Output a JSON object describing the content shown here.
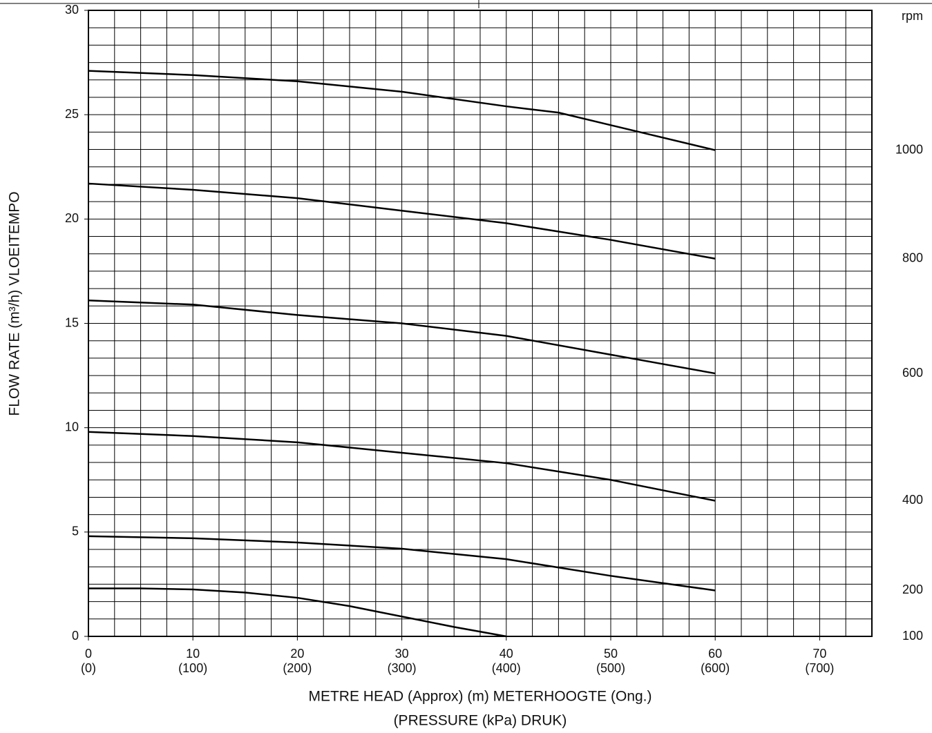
{
  "chart_data": {
    "type": "line",
    "xlabel": "METRE HEAD (Approx) (m) METERHOOGTE (Ong.)",
    "xlabel2": "(PRESSURE (kPa) DRUK)",
    "ylabel": "FLOW RATE (m³/h) VLOEITEMPO",
    "right_label": "rpm",
    "xlim": [
      0,
      75
    ],
    "ylim": [
      0,
      30
    ],
    "xticks": [
      0,
      10,
      20,
      30,
      40,
      50,
      60,
      70
    ],
    "x2tick_labels": [
      "(0)",
      "(100)",
      "(200)",
      "(300)",
      "(400)",
      "(500)",
      "(600)",
      "(700)"
    ],
    "yticks": [
      0,
      5,
      10,
      15,
      20,
      25,
      30
    ],
    "grid": true,
    "grid_divisions": {
      "x": 30,
      "y": 36
    },
    "series": [
      {
        "name": "1000",
        "color": "#000000",
        "x": [
          0,
          10,
          20,
          30,
          40,
          45,
          50,
          60
        ],
        "values": [
          27.1,
          26.9,
          26.6,
          26.1,
          25.4,
          25.1,
          24.5,
          23.3
        ]
      },
      {
        "name": "800",
        "color": "#000000",
        "x": [
          0,
          10,
          20,
          30,
          40,
          50,
          60
        ],
        "values": [
          21.7,
          21.4,
          21.0,
          20.4,
          19.8,
          19.0,
          18.1
        ]
      },
      {
        "name": "600",
        "color": "#000000",
        "x": [
          0,
          10,
          20,
          30,
          40,
          50,
          60
        ],
        "values": [
          16.1,
          15.9,
          15.4,
          15.0,
          14.4,
          13.5,
          12.6
        ]
      },
      {
        "name": "400",
        "color": "#000000",
        "x": [
          0,
          10,
          20,
          30,
          40,
          50,
          60
        ],
        "values": [
          9.8,
          9.6,
          9.3,
          8.8,
          8.3,
          7.5,
          6.5
        ]
      },
      {
        "name": "200",
        "color": "#000000",
        "x": [
          0,
          10,
          20,
          30,
          40,
          50,
          60
        ],
        "values": [
          4.8,
          4.7,
          4.5,
          4.2,
          3.7,
          2.9,
          2.2
        ]
      },
      {
        "name": "100",
        "color": "#000000",
        "x": [
          0,
          5,
          10,
          15,
          20,
          25,
          30,
          35,
          40
        ],
        "values": [
          2.3,
          2.3,
          2.25,
          2.1,
          1.85,
          1.45,
          0.95,
          0.45,
          0
        ]
      }
    ]
  }
}
